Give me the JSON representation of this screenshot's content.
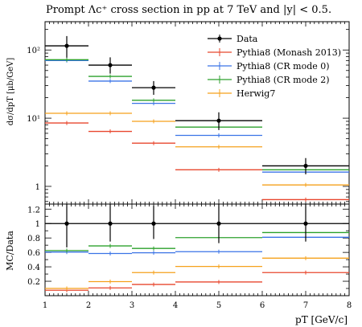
{
  "chart_data": {
    "type": "scatter",
    "title": "Prompt Λc⁺ cross section in pp at 7 TeV and |y| < 0.5.",
    "xlabel": "pT [GeV/c]",
    "ylabel_main": "dσ/dpT [μb/GeV]",
    "ylabel_ratio": "MC/Data",
    "xlim": [
      1,
      8
    ],
    "ylim_main": [
      0.55,
      260
    ],
    "ylim_ratio": [
      0,
      1.27
    ],
    "log_y_main": true,
    "grid": false,
    "legend_position": "top-right",
    "bin_edges": [
      1,
      2,
      3,
      4,
      6,
      8
    ],
    "x_ticks": [
      "1",
      "2",
      "3",
      "4",
      "5",
      "6",
      "7",
      "8"
    ],
    "y_ticks_main": [
      "1",
      "10¹",
      "10²"
    ],
    "y_ticks_ratio": [
      "0.2",
      "0.4",
      "0.6",
      "0.8",
      "1",
      "1.2"
    ],
    "data": {
      "name": "Data",
      "color": "#000000",
      "x": [
        1.5,
        2.5,
        3.5,
        5,
        7
      ],
      "values": [
        115,
        60,
        28,
        9.2,
        2.0
      ],
      "err_up": [
        45,
        18,
        7,
        3.0,
        0.6
      ],
      "err_down": [
        38,
        15,
        6,
        2.5,
        0.5
      ]
    },
    "series": [
      {
        "name": "Pythia8 (Monash 2013)",
        "color": "#e8472e",
        "values": [
          8.5,
          6.4,
          4.3,
          1.75,
          0.64
        ],
        "ratio": [
          0.075,
          0.107,
          0.155,
          0.19,
          0.32
        ]
      },
      {
        "name": "Pythia8 (CR mode 0)",
        "color": "#3a73e6",
        "values": [
          70,
          35,
          16.5,
          5.6,
          1.62
        ],
        "ratio": [
          0.605,
          0.585,
          0.595,
          0.61,
          0.81
        ]
      },
      {
        "name": "Pythia8 (CR mode 2)",
        "color": "#2ca02c",
        "values": [
          72,
          41,
          18.3,
          7.4,
          1.75
        ],
        "ratio": [
          0.625,
          0.69,
          0.655,
          0.805,
          0.875
        ]
      },
      {
        "name": "Herwig7",
        "color": "#f5a11b",
        "values": [
          11.8,
          11.8,
          9.0,
          3.8,
          1.05
        ],
        "ratio": [
          0.1,
          0.195,
          0.32,
          0.405,
          0.52
        ]
      }
    ]
  }
}
